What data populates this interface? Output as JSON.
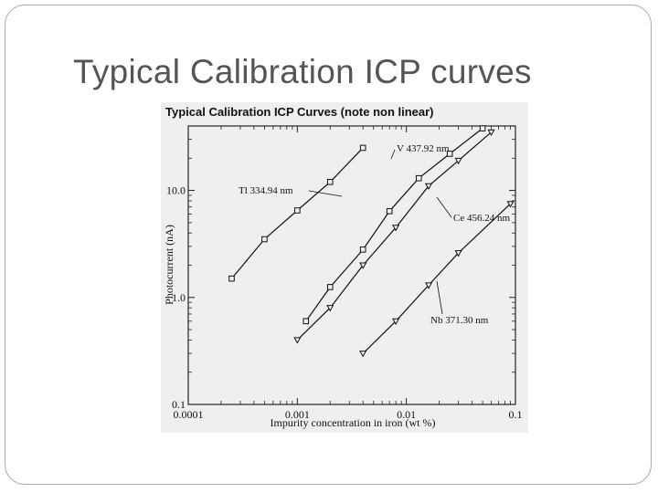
{
  "slide": {
    "title": "Typical Calibration ICP curves"
  },
  "chart_data": {
    "type": "line",
    "title": "Typical Calibration ICP Curves (note non linear)",
    "xlabel": "Impurity concentration in iron (wt %)",
    "ylabel": "Photocurrent (nA)",
    "x_scale": "log",
    "y_scale": "log",
    "xlim": [
      0.0001,
      0.1
    ],
    "ylim": [
      0.1,
      40
    ],
    "x_ticks": [
      {
        "value": 0.0001,
        "label": "0.0001"
      },
      {
        "value": 0.001,
        "label": "0.001"
      },
      {
        "value": 0.01,
        "label": "0.01"
      },
      {
        "value": 0.1,
        "label": "0.1"
      }
    ],
    "y_ticks": [
      {
        "value": 0.1,
        "label": "0.1"
      },
      {
        "value": 1,
        "label": "1.0"
      },
      {
        "value": 10,
        "label": "10.0"
      }
    ],
    "grid": false,
    "series": [
      {
        "name": "Tl 334.94 nm",
        "marker": "square",
        "x": [
          0.00025,
          0.0005,
          0.001,
          0.002,
          0.004
        ],
        "y": [
          1.5,
          3.5,
          6.5,
          12,
          25
        ]
      },
      {
        "name": "V 437.92 nm",
        "marker": "square",
        "x": [
          0.0012,
          0.002,
          0.004,
          0.007,
          0.013,
          0.025,
          0.05
        ],
        "y": [
          0.6,
          1.25,
          2.8,
          6.4,
          13,
          22,
          38
        ]
      },
      {
        "name": "Ce 456.24 nm",
        "marker": "triangle",
        "x": [
          0.001,
          0.002,
          0.004,
          0.008,
          0.016,
          0.03,
          0.06
        ],
        "y": [
          0.4,
          0.8,
          2.0,
          4.5,
          11,
          19,
          35
        ]
      },
      {
        "name": "Nb 371.30 nm",
        "marker": "triangle",
        "x": [
          0.004,
          0.008,
          0.016,
          0.03,
          0.09
        ],
        "y": [
          0.3,
          0.6,
          1.3,
          2.6,
          7.5
        ]
      }
    ]
  }
}
